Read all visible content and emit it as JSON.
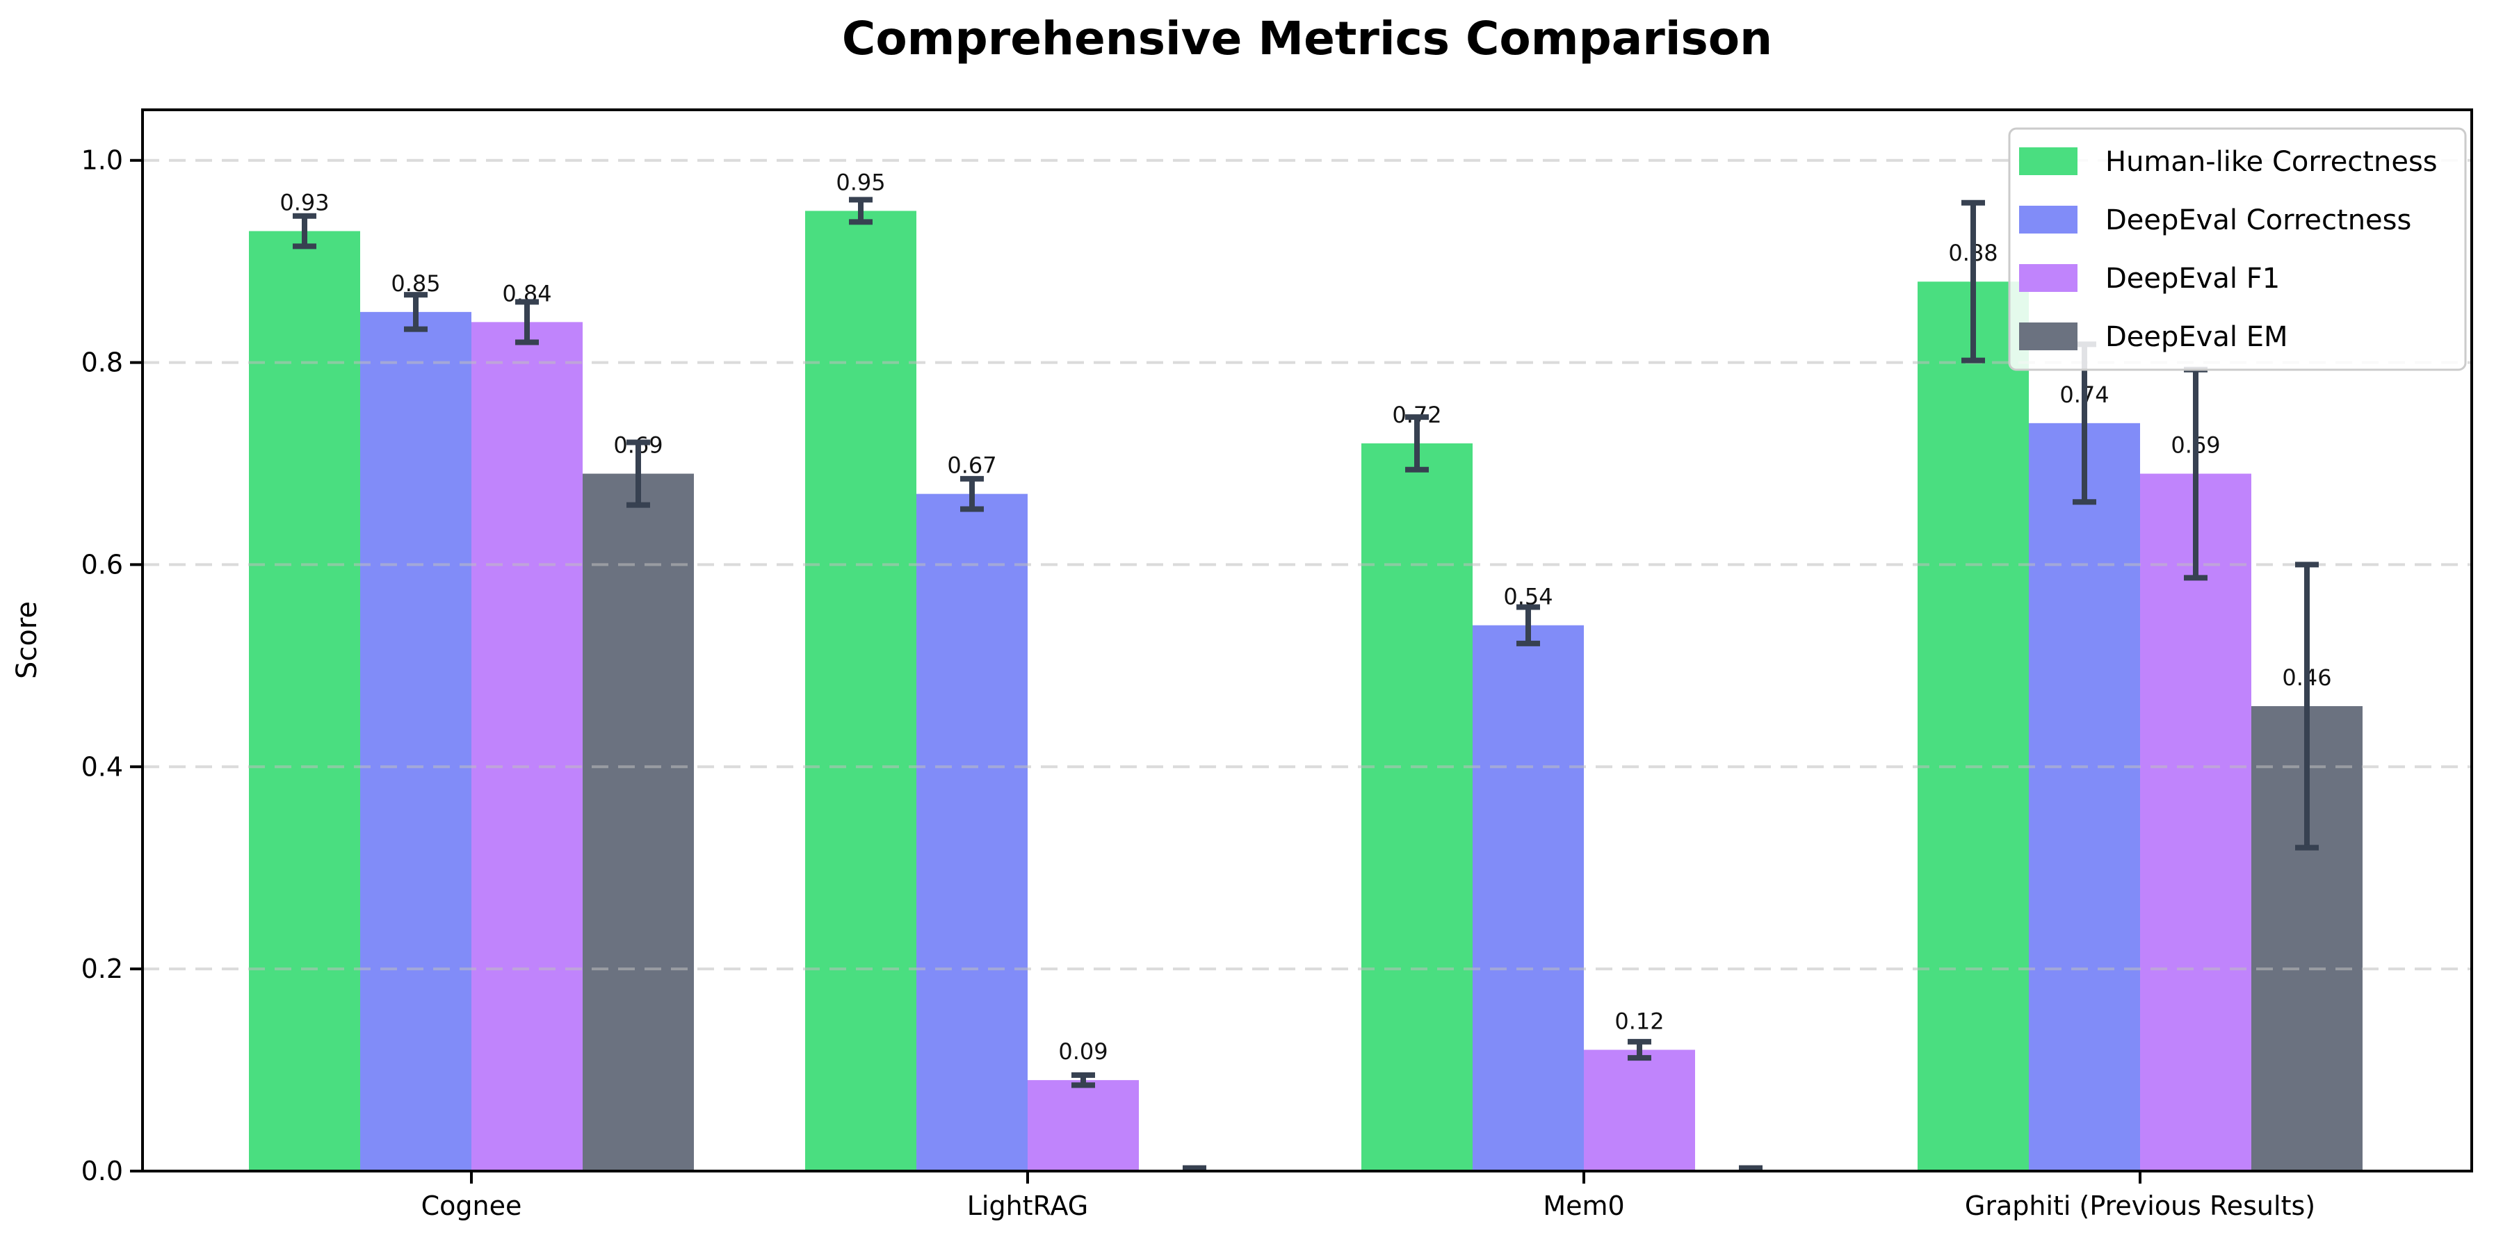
{
  "chart_data": {
    "type": "bar",
    "title": "Comprehensive Metrics Comparison",
    "ylabel": "Score",
    "xlabel": "",
    "categories": [
      "Cognee",
      "LightRAG",
      "Mem0",
      "Graphiti (Previous Results)"
    ],
    "series": [
      {
        "name": "Human-like Correctness",
        "color": "#4ade80",
        "values": [
          0.93,
          0.95,
          0.72,
          0.88
        ],
        "errors": [
          0.015,
          0.011,
          0.026,
          0.078
        ]
      },
      {
        "name": "DeepEval Correctness",
        "color": "#818cf8",
        "values": [
          0.85,
          0.67,
          0.54,
          0.74
        ],
        "errors": [
          0.017,
          0.015,
          0.018,
          0.078
        ]
      },
      {
        "name": "DeepEval F1",
        "color": "#c084fc",
        "values": [
          0.84,
          0.09,
          0.12,
          0.69
        ],
        "errors": [
          0.02,
          0.005,
          0.008,
          0.103
        ]
      },
      {
        "name": "DeepEval EM",
        "color": "#6b7280",
        "values": [
          0.69,
          0.0,
          0.0,
          0.46
        ],
        "errors": [
          0.031,
          0.003,
          0.003,
          0.14
        ]
      }
    ],
    "ylim": [
      0,
      1.05
    ],
    "yticks": [
      0.0,
      0.2,
      0.4,
      0.6,
      0.8,
      1.0
    ],
    "ytick_labels": [
      "0.0",
      "0.2",
      "0.4",
      "0.6",
      "0.8",
      "1.0"
    ],
    "grid": true,
    "grid_style": "dashed",
    "legend_position": "upper right",
    "error_color": "#374151",
    "axis_color": "#000000",
    "gridline_color": "#bfbfbf",
    "background_color": "#ffffff",
    "value_label_decimals": 2
  }
}
